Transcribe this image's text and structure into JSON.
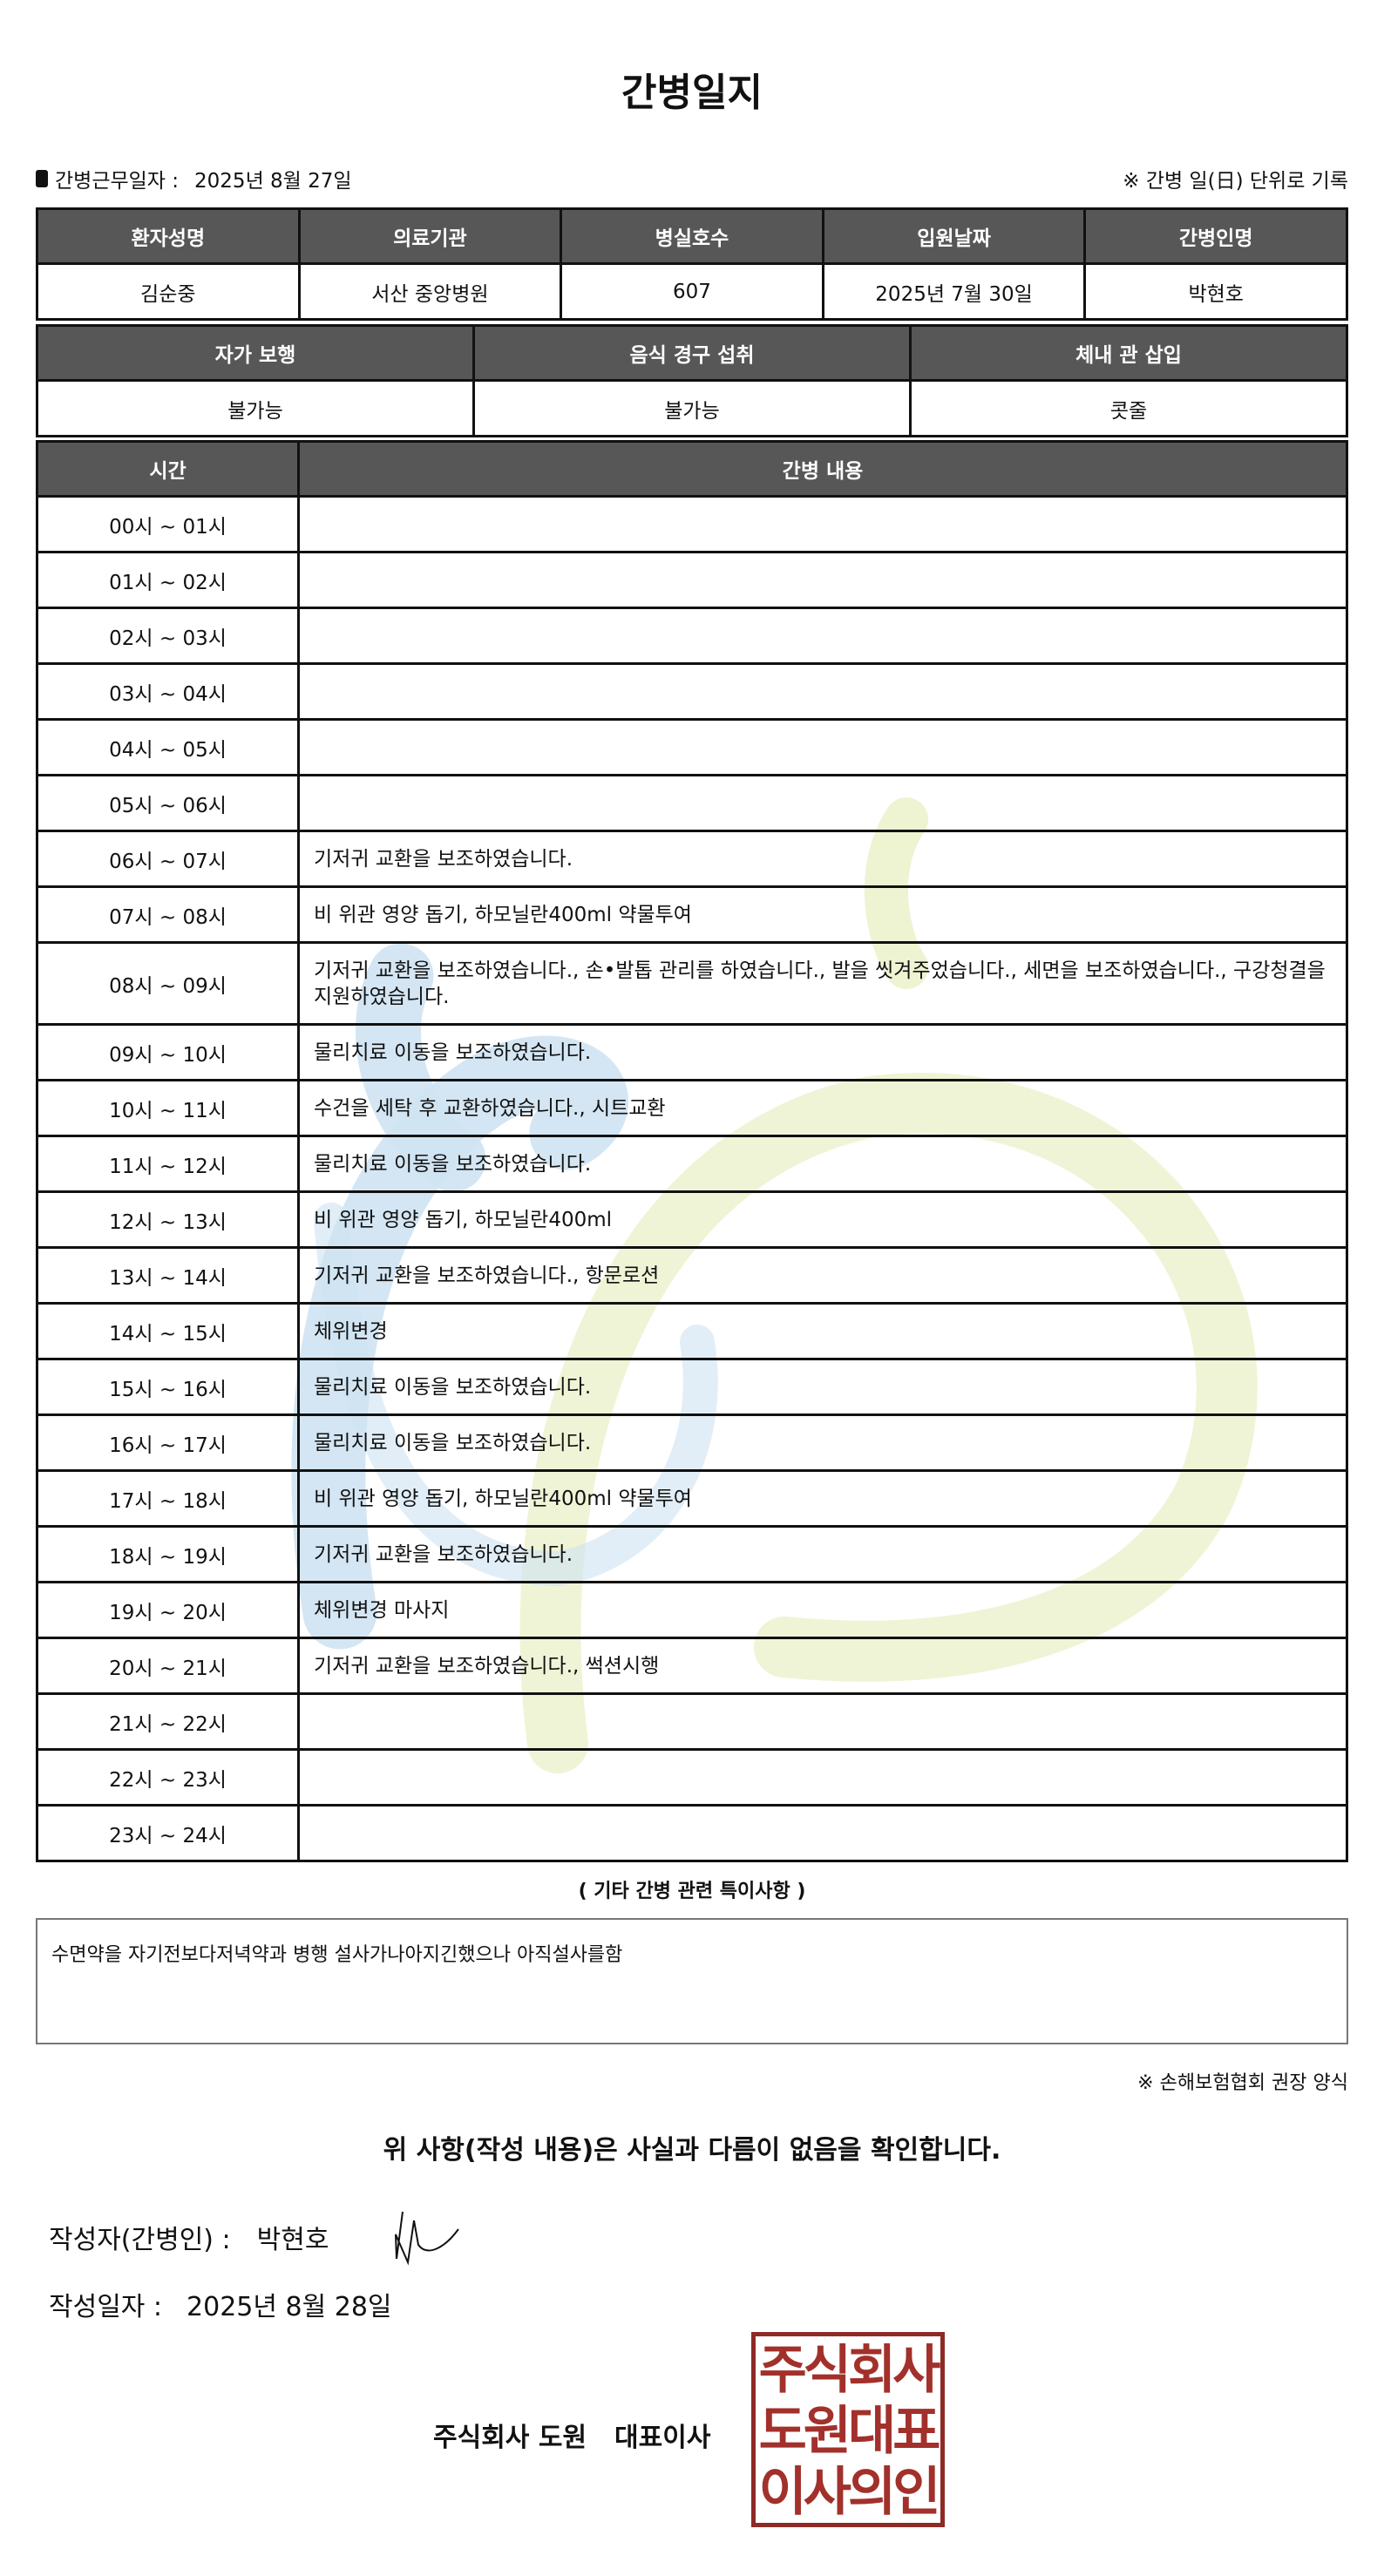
{
  "title": "간병일지",
  "work_date_label": "간병근무일자  :",
  "work_date": "2025년 8월 27일",
  "unit_note": "※ 간병 일(日) 단위로 기록",
  "info1": {
    "headers": [
      "환자성명",
      "의료기관",
      "병실호수",
      "입원날짜",
      "간병인명"
    ],
    "values": [
      "김순중",
      "서산 중앙병원",
      "607",
      "2025년 7월 30일",
      "박현호"
    ]
  },
  "info2": {
    "headers": [
      "자가 보행",
      "음식 경구 섭취",
      "체내 관 삽입"
    ],
    "values": [
      "불가능",
      "불가능",
      "콧줄"
    ]
  },
  "log": {
    "headers": [
      "시간",
      "간병 내용"
    ],
    "rows": [
      {
        "time": "00시 ~ 01시",
        "content": ""
      },
      {
        "time": "01시 ~ 02시",
        "content": ""
      },
      {
        "time": "02시 ~ 03시",
        "content": ""
      },
      {
        "time": "03시 ~ 04시",
        "content": ""
      },
      {
        "time": "04시 ~ 05시",
        "content": ""
      },
      {
        "time": "05시 ~ 06시",
        "content": ""
      },
      {
        "time": "06시 ~ 07시",
        "content": "기저귀 교환을 보조하였습니다."
      },
      {
        "time": "07시 ~ 08시",
        "content": "비 위관 영양 돕기, 하모닐란400ml 약물투여"
      },
      {
        "time": "08시 ~ 09시",
        "content": "기저귀 교환을 보조하였습니다., 손•발톱 관리를 하였습니다., 발을 씻겨주었습니다., 세면을 보조하였습니다., 구강청결을 지원하였습니다."
      },
      {
        "time": "09시 ~ 10시",
        "content": "물리치료 이동을 보조하였습니다."
      },
      {
        "time": "10시 ~ 11시",
        "content": "수건을 세탁 후 교환하였습니다., 시트교환"
      },
      {
        "time": "11시 ~ 12시",
        "content": "물리치료 이동을 보조하였습니다."
      },
      {
        "time": "12시 ~ 13시",
        "content": "비 위관 영양 돕기, 하모닐란400ml"
      },
      {
        "time": "13시 ~ 14시",
        "content": "기저귀 교환을 보조하였습니다., 항문로션"
      },
      {
        "time": "14시 ~ 15시",
        "content": "체위변경"
      },
      {
        "time": "15시 ~ 16시",
        "content": "물리치료 이동을 보조하였습니다."
      },
      {
        "time": "16시 ~ 17시",
        "content": "물리치료 이동을 보조하였습니다."
      },
      {
        "time": "17시 ~ 18시",
        "content": "비 위관 영양 돕기, 하모닐란400ml 약물투여"
      },
      {
        "time": "18시 ~ 19시",
        "content": "기저귀 교환을 보조하였습니다."
      },
      {
        "time": "19시 ~ 20시",
        "content": "체위변경 마사지"
      },
      {
        "time": "20시 ~ 21시",
        "content": "기저귀 교환을 보조하였습니다., 썩션시행"
      },
      {
        "time": "21시 ~ 22시",
        "content": ""
      },
      {
        "time": "22시 ~ 23시",
        "content": ""
      },
      {
        "time": "23시 ~ 24시",
        "content": ""
      }
    ]
  },
  "special": {
    "title": "( 기타 간병 관련 특이사항 )",
    "text": "수면약을 자기전보다저녁약과 병행 설사가나아지긴했으나 아직설사를함"
  },
  "form_note": "※ 손해보험협회 권장 양식",
  "statement": "위 사항(작성 내용)은 사실과 다름이 없음을 확인합니다.",
  "author": {
    "label": "작성자(간병인) :",
    "name": "박현호"
  },
  "written_date": {
    "label": "작성일자 :",
    "value": "2025년 8월 28일"
  },
  "company": {
    "name": "주식회사 도원",
    "title": "대표이사"
  },
  "seal": {
    "lines": [
      "주식회사",
      "도원대표",
      "이사의인"
    ],
    "color": "#a2302b"
  },
  "colors": {
    "header_bg": "#575757",
    "watermark_blue": "#cfe3f2",
    "watermark_green": "#eef3d2"
  }
}
